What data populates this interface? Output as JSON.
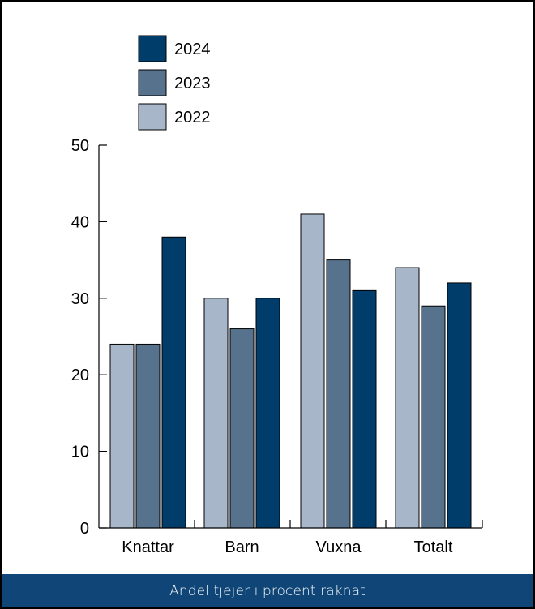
{
  "caption": "Andel tjejer i procent räknat",
  "colors": {
    "2024": "#003d6b",
    "2023": "#56728d",
    "2022": "#a7b6c8",
    "footer": "#0f4677",
    "axis": "#000000"
  },
  "chart_data": {
    "type": "bar",
    "categories": [
      "Knattar",
      "Barn",
      "Vuxna",
      "Totalt"
    ],
    "series": [
      {
        "name": "2022",
        "values": [
          24,
          30,
          41,
          34
        ]
      },
      {
        "name": "2023",
        "values": [
          24,
          26,
          35,
          29
        ]
      },
      {
        "name": "2024",
        "values": [
          38,
          30,
          31,
          32
        ]
      }
    ],
    "legend_order": [
      "2024",
      "2023",
      "2022"
    ],
    "legend_placement": "top-left",
    "yticks": [
      "0",
      "10",
      "20",
      "30",
      "40",
      "50"
    ],
    "ylim": [
      0,
      50
    ],
    "grid": false,
    "title": "",
    "xlabel": "",
    "ylabel": ""
  }
}
